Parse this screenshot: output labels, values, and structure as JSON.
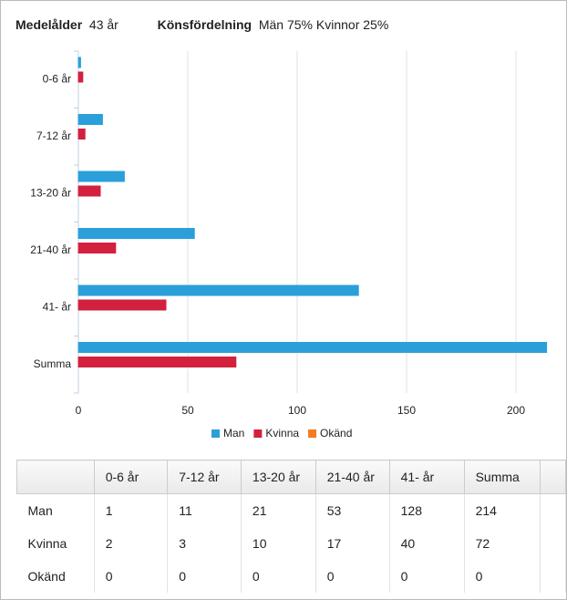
{
  "header": {
    "age_label": "Medelålder",
    "age_value": "43 år",
    "gender_label": "Könsfördelning",
    "gender_value": "Män 75% Kvinnor 25%"
  },
  "chart_data": {
    "type": "bar",
    "orientation": "horizontal",
    "categories": [
      "0-6 år",
      "7-12 år",
      "13-20 år",
      "21-40 år",
      "41- år",
      "Summa"
    ],
    "series": [
      {
        "name": "Man",
        "color": "#2b9fd9",
        "values": [
          1,
          11,
          21,
          53,
          128,
          214
        ]
      },
      {
        "name": "Kvinna",
        "color": "#d2213f",
        "values": [
          2,
          3,
          10,
          17,
          40,
          72
        ]
      },
      {
        "name": "Okänd",
        "color": "#f47a20",
        "values": [
          0,
          0,
          0,
          0,
          0,
          0
        ]
      }
    ],
    "xlim": [
      0,
      214
    ],
    "xticks": [
      0,
      50,
      100,
      150,
      200
    ],
    "grid": true,
    "legend": "bottom"
  }
}
